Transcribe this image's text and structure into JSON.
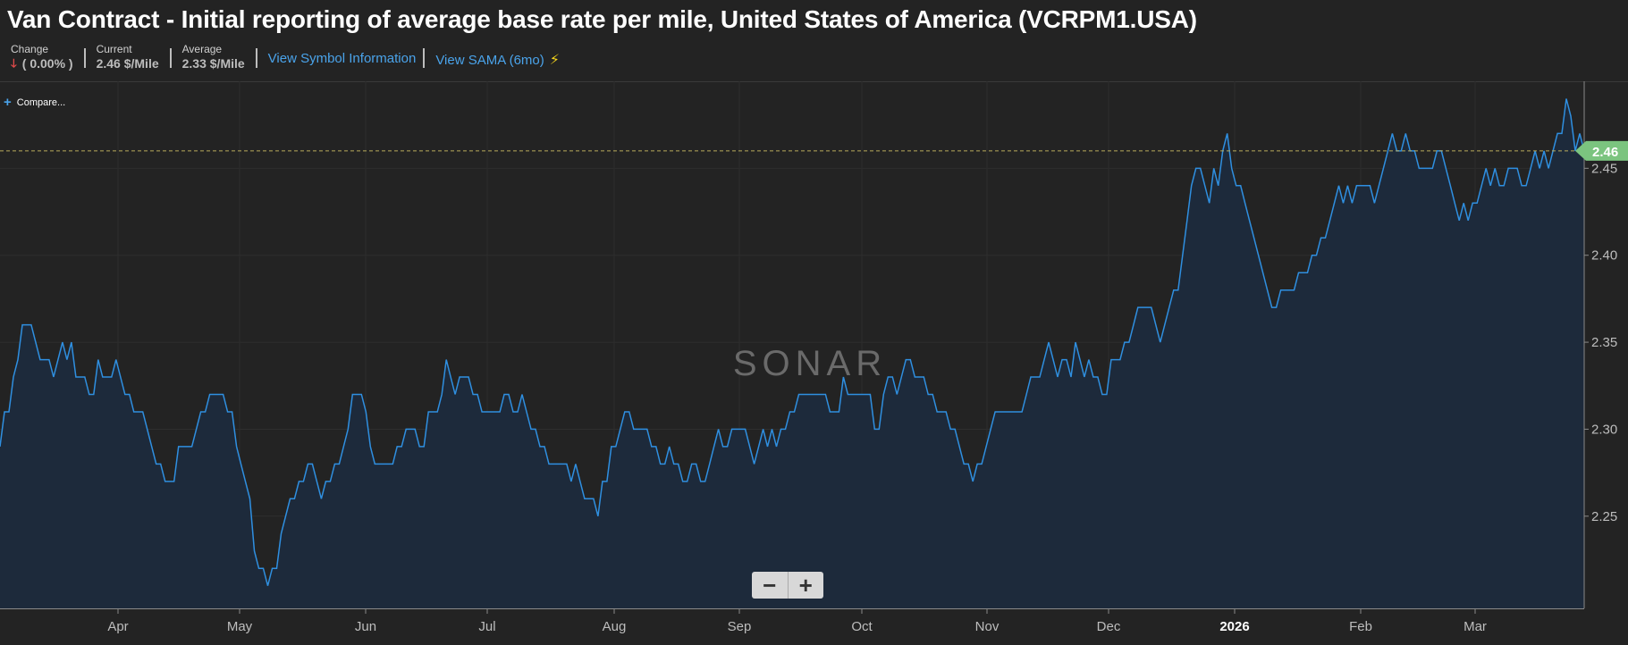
{
  "header": {
    "title": "Van Contract - Initial reporting of average base rate per mile, United States of America (VCRPM1.USA)",
    "change_label": "Change",
    "change_value": "( 0.00% )",
    "current_label": "Current",
    "current_value": "2.46 $/Mile",
    "average_label": "Average",
    "average_value": "2.33 $/Mile",
    "link_symbol": "View Symbol Information",
    "link_sama": "View SAMA (6mo)"
  },
  "compare_label": "Compare...",
  "watermark": "SONAR",
  "zoom": {
    "minus": "−",
    "plus": "+"
  },
  "colors": {
    "line": "#2f8fe0",
    "fill": "#1d2a3b",
    "badge": "#7bc47f",
    "background": "#232323"
  },
  "chart_data": {
    "type": "line",
    "title": "Van Contract - Initial reporting of average base rate per mile, United States of America (VCRPM1.USA)",
    "ylabel": "$/Mile",
    "ylim": [
      2.197,
      2.5
    ],
    "yticks": [
      2.25,
      2.3,
      2.35,
      2.4,
      2.45
    ],
    "current_value": 2.46,
    "current_label": "2.46",
    "x_tick_labels": [
      "Apr",
      "May",
      "Jun",
      "Jul",
      "Aug",
      "Sep",
      "Oct",
      "Nov",
      "Dec",
      "2026",
      "Feb",
      "Mar"
    ],
    "x_tick_bold": "2026",
    "series": [
      {
        "name": "VCRPM1.USA",
        "values": [
          2.29,
          2.31,
          2.31,
          2.33,
          2.34,
          2.36,
          2.36,
          2.36,
          2.35,
          2.34,
          2.34,
          2.34,
          2.33,
          2.34,
          2.35,
          2.34,
          2.35,
          2.33,
          2.33,
          2.33,
          2.32,
          2.32,
          2.34,
          2.33,
          2.33,
          2.33,
          2.34,
          2.33,
          2.32,
          2.32,
          2.31,
          2.31,
          2.31,
          2.3,
          2.29,
          2.28,
          2.28,
          2.27,
          2.27,
          2.27,
          2.29,
          2.29,
          2.29,
          2.29,
          2.3,
          2.31,
          2.31,
          2.32,
          2.32,
          2.32,
          2.32,
          2.31,
          2.31,
          2.29,
          2.28,
          2.27,
          2.26,
          2.23,
          2.22,
          2.22,
          2.21,
          2.22,
          2.22,
          2.24,
          2.25,
          2.26,
          2.26,
          2.27,
          2.27,
          2.28,
          2.28,
          2.27,
          2.26,
          2.27,
          2.27,
          2.28,
          2.28,
          2.29,
          2.3,
          2.32,
          2.32,
          2.32,
          2.31,
          2.29,
          2.28,
          2.28,
          2.28,
          2.28,
          2.28,
          2.29,
          2.29,
          2.3,
          2.3,
          2.3,
          2.29,
          2.29,
          2.31,
          2.31,
          2.31,
          2.32,
          2.34,
          2.33,
          2.32,
          2.33,
          2.33,
          2.33,
          2.32,
          2.32,
          2.31,
          2.31,
          2.31,
          2.31,
          2.31,
          2.32,
          2.32,
          2.31,
          2.31,
          2.32,
          2.31,
          2.3,
          2.3,
          2.29,
          2.29,
          2.28,
          2.28,
          2.28,
          2.28,
          2.28,
          2.27,
          2.28,
          2.27,
          2.26,
          2.26,
          2.26,
          2.25,
          2.27,
          2.27,
          2.29,
          2.29,
          2.3,
          2.31,
          2.31,
          2.3,
          2.3,
          2.3,
          2.3,
          2.29,
          2.29,
          2.28,
          2.28,
          2.29,
          2.28,
          2.28,
          2.27,
          2.27,
          2.28,
          2.28,
          2.27,
          2.27,
          2.28,
          2.29,
          2.3,
          2.29,
          2.29,
          2.3,
          2.3,
          2.3,
          2.3,
          2.29,
          2.28,
          2.29,
          2.3,
          2.29,
          2.3,
          2.29,
          2.3,
          2.3,
          2.31,
          2.31,
          2.32,
          2.32,
          2.32,
          2.32,
          2.32,
          2.32,
          2.32,
          2.31,
          2.31,
          2.31,
          2.33,
          2.32,
          2.32,
          2.32,
          2.32,
          2.32,
          2.32,
          2.3,
          2.3,
          2.32,
          2.33,
          2.33,
          2.32,
          2.33,
          2.34,
          2.34,
          2.33,
          2.33,
          2.33,
          2.32,
          2.32,
          2.31,
          2.31,
          2.31,
          2.3,
          2.3,
          2.29,
          2.28,
          2.28,
          2.27,
          2.28,
          2.28,
          2.29,
          2.3,
          2.31,
          2.31,
          2.31,
          2.31,
          2.31,
          2.31,
          2.31,
          2.32,
          2.33,
          2.33,
          2.33,
          2.34,
          2.35,
          2.34,
          2.33,
          2.34,
          2.34,
          2.33,
          2.35,
          2.34,
          2.33,
          2.34,
          2.33,
          2.33,
          2.32,
          2.32,
          2.34,
          2.34,
          2.34,
          2.35,
          2.35,
          2.36,
          2.37,
          2.37,
          2.37,
          2.37,
          2.36,
          2.35,
          2.36,
          2.37,
          2.38,
          2.38,
          2.4,
          2.42,
          2.44,
          2.45,
          2.45,
          2.44,
          2.43,
          2.45,
          2.44,
          2.46,
          2.47,
          2.45,
          2.44,
          2.44,
          2.43,
          2.42,
          2.41,
          2.4,
          2.39,
          2.38,
          2.37,
          2.37,
          2.38,
          2.38,
          2.38,
          2.38,
          2.39,
          2.39,
          2.39,
          2.4,
          2.4,
          2.41,
          2.41,
          2.42,
          2.43,
          2.44,
          2.43,
          2.44,
          2.43,
          2.44,
          2.44,
          2.44,
          2.44,
          2.43,
          2.44,
          2.45,
          2.46,
          2.47,
          2.46,
          2.46,
          2.47,
          2.46,
          2.46,
          2.45,
          2.45,
          2.45,
          2.45,
          2.46,
          2.46,
          2.45,
          2.44,
          2.43,
          2.42,
          2.43,
          2.42,
          2.43,
          2.43,
          2.44,
          2.45,
          2.44,
          2.45,
          2.44,
          2.44,
          2.45,
          2.45,
          2.45,
          2.44,
          2.44,
          2.45,
          2.46,
          2.45,
          2.46,
          2.45,
          2.46,
          2.47,
          2.47,
          2.49,
          2.48,
          2.46,
          2.47,
          2.46
        ]
      }
    ]
  }
}
